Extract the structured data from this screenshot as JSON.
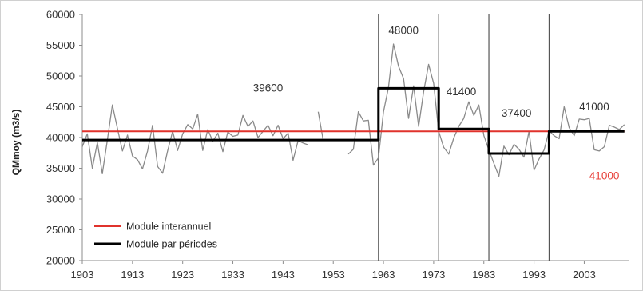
{
  "chart_data": {
    "type": "line",
    "title": "",
    "xlabel": "",
    "ylabel": "QMmoy (m3/s)",
    "xlim": [
      1903,
      2012
    ],
    "ylim": [
      20000,
      60000
    ],
    "x_ticks": [
      1903,
      1913,
      1923,
      1933,
      1943,
      1953,
      1963,
      1973,
      1983,
      1993,
      2003
    ],
    "y_ticks": [
      20000,
      25000,
      30000,
      35000,
      40000,
      45000,
      50000,
      55000,
      60000
    ],
    "grid": false,
    "legend_position": "bottom-left",
    "colors": {
      "observed": "#8a8a8a",
      "interannual": "#e0322c",
      "periods": "#000000",
      "breaks": "#555555"
    },
    "series": [
      {
        "key": "observed",
        "points": [
          [
            1903,
            38500
          ],
          [
            1904,
            40600
          ],
          [
            1905,
            35000
          ],
          [
            1906,
            39200
          ],
          [
            1907,
            34100
          ],
          [
            1908,
            39600
          ],
          [
            1909,
            45300
          ],
          [
            1910,
            41500
          ],
          [
            1911,
            37800
          ],
          [
            1912,
            40400
          ],
          [
            1913,
            37000
          ],
          [
            1914,
            36400
          ],
          [
            1915,
            34900
          ],
          [
            1916,
            37800
          ],
          [
            1917,
            42000
          ],
          [
            1918,
            35300
          ],
          [
            1919,
            34200
          ],
          [
            1920,
            37800
          ],
          [
            1921,
            41000
          ],
          [
            1922,
            37900
          ],
          [
            1923,
            40600
          ],
          [
            1924,
            42100
          ],
          [
            1925,
            41400
          ],
          [
            1926,
            43800
          ],
          [
            1927,
            37900
          ],
          [
            1928,
            41300
          ],
          [
            1929,
            39400
          ],
          [
            1930,
            40700
          ],
          [
            1931,
            37700
          ],
          [
            1932,
            40900
          ],
          [
            1933,
            40200
          ],
          [
            1934,
            40400
          ],
          [
            1935,
            43600
          ],
          [
            1936,
            41800
          ],
          [
            1937,
            42700
          ],
          [
            1938,
            40000
          ],
          [
            1939,
            41000
          ],
          [
            1940,
            42000
          ],
          [
            1941,
            40300
          ],
          [
            1942,
            42000
          ],
          [
            1943,
            39800
          ],
          [
            1944,
            40700
          ],
          [
            1945,
            36300
          ],
          [
            1946,
            39500
          ],
          [
            1947,
            39100
          ],
          [
            1948,
            38800
          ],
          [
            1949,
            null
          ],
          [
            1950,
            44200
          ],
          [
            1951,
            39500
          ],
          [
            1952,
            null
          ],
          [
            1953,
            null
          ],
          [
            1954,
            null
          ],
          [
            1955,
            null
          ],
          [
            1956,
            37300
          ],
          [
            1957,
            38100
          ],
          [
            1958,
            44200
          ],
          [
            1959,
            42700
          ],
          [
            1960,
            42800
          ],
          [
            1961,
            35500
          ],
          [
            1962,
            36700
          ],
          [
            1963,
            44200
          ],
          [
            1964,
            48100
          ],
          [
            1965,
            55200
          ],
          [
            1966,
            51600
          ],
          [
            1967,
            49600
          ],
          [
            1968,
            43100
          ],
          [
            1969,
            48400
          ],
          [
            1970,
            41800
          ],
          [
            1971,
            47400
          ],
          [
            1972,
            51900
          ],
          [
            1973,
            48800
          ],
          [
            1974,
            41000
          ],
          [
            1975,
            38400
          ],
          [
            1976,
            37300
          ],
          [
            1977,
            39900
          ],
          [
            1978,
            41800
          ],
          [
            1979,
            43100
          ],
          [
            1980,
            45800
          ],
          [
            1981,
            43600
          ],
          [
            1982,
            45300
          ],
          [
            1983,
            40300
          ],
          [
            1984,
            38000
          ],
          [
            1985,
            35800
          ],
          [
            1986,
            33700
          ],
          [
            1987,
            38600
          ],
          [
            1988,
            37200
          ],
          [
            1989,
            38900
          ],
          [
            1990,
            38100
          ],
          [
            1991,
            36800
          ],
          [
            1992,
            41000
          ],
          [
            1993,
            34700
          ],
          [
            1994,
            36500
          ],
          [
            1995,
            38000
          ],
          [
            1996,
            41100
          ],
          [
            1997,
            40300
          ],
          [
            1998,
            39800
          ],
          [
            1999,
            45000
          ],
          [
            2000,
            41600
          ],
          [
            2001,
            40300
          ],
          [
            2002,
            43000
          ],
          [
            2003,
            42900
          ],
          [
            2004,
            43100
          ],
          [
            2005,
            38000
          ],
          [
            2006,
            37800
          ],
          [
            2007,
            38500
          ],
          [
            2008,
            42000
          ],
          [
            2009,
            41700
          ],
          [
            2010,
            41300
          ],
          [
            2011,
            42100
          ]
        ]
      },
      {
        "key": "interannual",
        "name": "Module interannuel",
        "points": [
          [
            1903,
            41000
          ],
          [
            2011,
            41000
          ]
        ]
      },
      {
        "key": "periods",
        "name": "Module par périodes",
        "points": [
          [
            1903,
            39600
          ],
          [
            1962,
            39600
          ],
          [
            1962,
            48000
          ],
          [
            1974,
            48000
          ],
          [
            1974,
            41400
          ],
          [
            1984,
            41400
          ],
          [
            1984,
            37400
          ],
          [
            1996,
            37400
          ],
          [
            1996,
            41000
          ],
          [
            2011,
            41000
          ]
        ]
      }
    ],
    "break_years": [
      1962,
      1974,
      1984,
      1996
    ],
    "annotations": [
      {
        "text": "39600",
        "x": 1940,
        "y": 47500,
        "color": "dark"
      },
      {
        "text": "48000",
        "x": 1967,
        "y": 56800,
        "color": "dark"
      },
      {
        "text": "41400",
        "x": 1978.5,
        "y": 46900,
        "color": "dark"
      },
      {
        "text": "37400",
        "x": 1989.5,
        "y": 43400,
        "color": "dark"
      },
      {
        "text": "41000",
        "x": 2005,
        "y": 44400,
        "color": "dark"
      },
      {
        "text": "41000",
        "x": 2007,
        "y": 33200,
        "color": "red"
      }
    ],
    "legend": [
      {
        "label": "Module interannuel",
        "series": "interannual"
      },
      {
        "label": "Module par périodes",
        "series": "periods"
      }
    ]
  }
}
